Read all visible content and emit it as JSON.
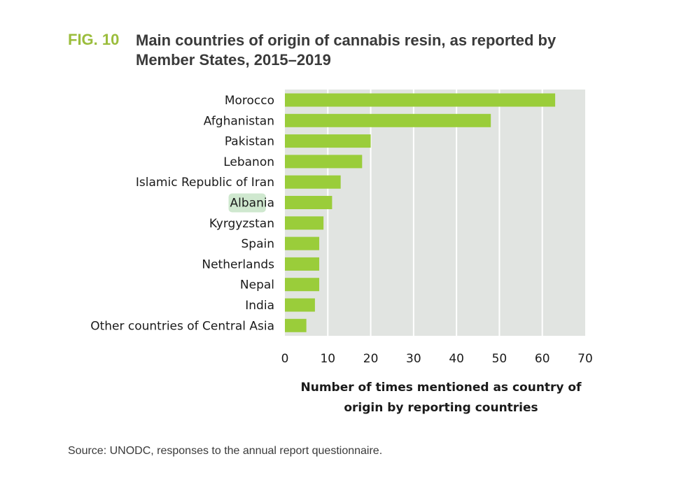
{
  "figure": {
    "label": "FIG. 10",
    "title": "Main countries of origin of cannabis resin, as reported by Member States, 2015–2019",
    "source": "Source: UNODC, responses to the annual report questionnaire."
  },
  "colors": {
    "bar": "#9acd3a",
    "plot_background": "#e1e4e1",
    "gridline": "#ffffff",
    "label_highlight": "#cfe8cf",
    "title_accent": "#9bbd3c"
  },
  "chart_data": {
    "type": "bar",
    "orientation": "horizontal",
    "title": "Main countries of origin of cannabis resin, as reported by Member States, 2015–2019",
    "xlabel": "Number of times mentioned as country of origin by reporting countries",
    "ylabel": "",
    "xlim": [
      0,
      70
    ],
    "xticks": [
      0,
      10,
      20,
      30,
      40,
      50,
      60,
      70
    ],
    "grid": true,
    "legend": "none",
    "categories": [
      "Morocco",
      "Afghanistan",
      "Pakistan",
      "Lebanon",
      "Islamic Republic of Iran",
      "Albania",
      "Kyrgyzstan",
      "Spain",
      "Netherlands",
      "Nepal",
      "India",
      "Other countries of Central Asia"
    ],
    "values": [
      63,
      48,
      20,
      18,
      13,
      11,
      9,
      8,
      8,
      8,
      7,
      5
    ],
    "highlighted_category": "Albania"
  }
}
